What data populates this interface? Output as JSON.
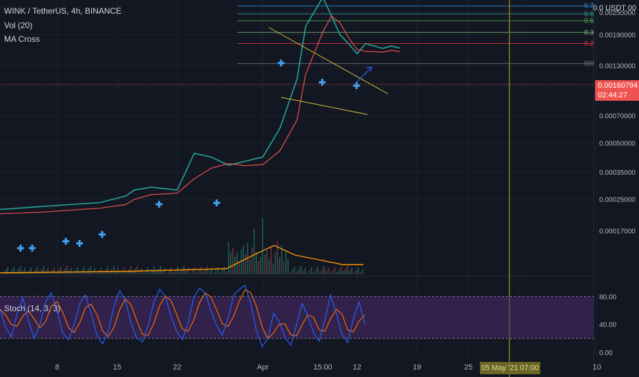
{
  "header": {
    "symbol_title": "WINK / TetherUS, 4h, BINANCE",
    "currency": "0.0 USDT 00",
    "indicators": [
      "Vol (20)",
      "MA Cross"
    ]
  },
  "last_price": {
    "value": "0.00160794",
    "countdown": "02:44:27"
  },
  "crosshair_date": "05 May '21   07:00",
  "stoch_label": "Stoch (14, 3, 3)",
  "fib_labels": [
    "1(0",
    "0.7",
    "0.6",
    "0.5",
    "0.3",
    "0.2",
    "0(0"
  ],
  "colors": {
    "background": "#131722",
    "up": "#26a69a",
    "down": "#ef5350",
    "ma_fast": "#2196f3",
    "ma_slow": "#ef5350",
    "volume_ma": "#ff9800",
    "stoch_k": "#2962ff",
    "stoch_d": "#ff6d00",
    "stoch_band": "#4a2a6e",
    "trendline": "#d4c43a",
    "crosshair_line": "#6b6624"
  },
  "chart_data": {
    "type": "candlestick",
    "title": "WINK / TetherUS, 4h, BINANCE",
    "price_axis": {
      "scale": "log",
      "ticks": [
        "0.00250000",
        "0.00190000",
        "0.00130000",
        "0.00100000",
        "0.00070000",
        "0.00050000",
        "0.00035000",
        "0.00025000",
        "0.00017000"
      ]
    },
    "x_axis": {
      "ticks": [
        "8",
        "15",
        "22",
        "Apr",
        "15:00",
        "12",
        "19",
        "25",
        "May",
        "10"
      ]
    },
    "price_series": {
      "name": "close",
      "points": [
        [
          "Mar 1",
          0.00022
        ],
        [
          "Mar 4",
          0.000225
        ],
        [
          "Mar 7",
          0.00023
        ],
        [
          "Mar 10",
          0.000235
        ],
        [
          "Mar 13",
          0.00024
        ],
        [
          "Mar 16",
          0.00026
        ],
        [
          "Mar 17",
          0.00028
        ],
        [
          "Mar 19",
          0.00029
        ],
        [
          "Mar 22",
          0.00028
        ],
        [
          "Mar 24",
          0.00044
        ],
        [
          "Mar 26",
          0.00042
        ],
        [
          "Mar 28",
          0.00038
        ],
        [
          "Mar 30",
          0.0004
        ],
        [
          "Apr 1",
          0.00042
        ],
        [
          "Apr 3",
          0.0006
        ],
        [
          "Apr 5",
          0.0011
        ],
        [
          "Apr 6",
          0.0021
        ],
        [
          "Apr 8",
          0.003
        ],
        [
          "Apr 9",
          0.0024
        ],
        [
          "Apr 10",
          0.0019
        ],
        [
          "Apr 11",
          0.0017
        ],
        [
          "Apr 12",
          0.0015
        ],
        [
          "Apr 13",
          0.0017
        ],
        [
          "Apr 15",
          0.0016
        ],
        [
          "Apr 16",
          0.00165
        ],
        [
          "Apr 17",
          0.00160794
        ]
      ]
    },
    "fib_levels": [
      {
        "label": "1(0",
        "value": 0.00303
      },
      {
        "label": "0.7",
        "value": 0.0027
      },
      {
        "label": "0.6",
        "value": 0.00245
      },
      {
        "label": "0.5",
        "value": 0.00225
      },
      {
        "label": "0.3",
        "value": 0.00195
      },
      {
        "label": "0.2",
        "value": 0.0017
      },
      {
        "label": "0(0",
        "value": 0.00133
      }
    ],
    "stochastic": {
      "label": "Stoch (14, 3, 3)",
      "ticks": [
        "80.00",
        "40.00",
        "0.00"
      ],
      "band": [
        20,
        80
      ],
      "k": [
        62,
        35,
        22,
        55,
        78,
        45,
        20,
        40,
        72,
        85,
        60,
        28,
        18,
        40,
        70,
        82,
        55,
        25,
        12,
        30,
        66,
        88,
        74,
        42,
        20,
        15,
        38,
        72,
        90,
        80,
        52,
        30,
        18,
        42,
        78,
        92,
        85,
        60,
        38,
        25,
        48,
        82,
        90,
        96,
        70,
        30,
        8,
        20,
        56,
        44,
        22,
        10,
        38,
        70,
        52,
        28,
        16,
        46,
        82,
        56,
        26,
        14,
        48,
        72,
        40
      ]
    },
    "volume_ma_note": "Vol (20)"
  }
}
